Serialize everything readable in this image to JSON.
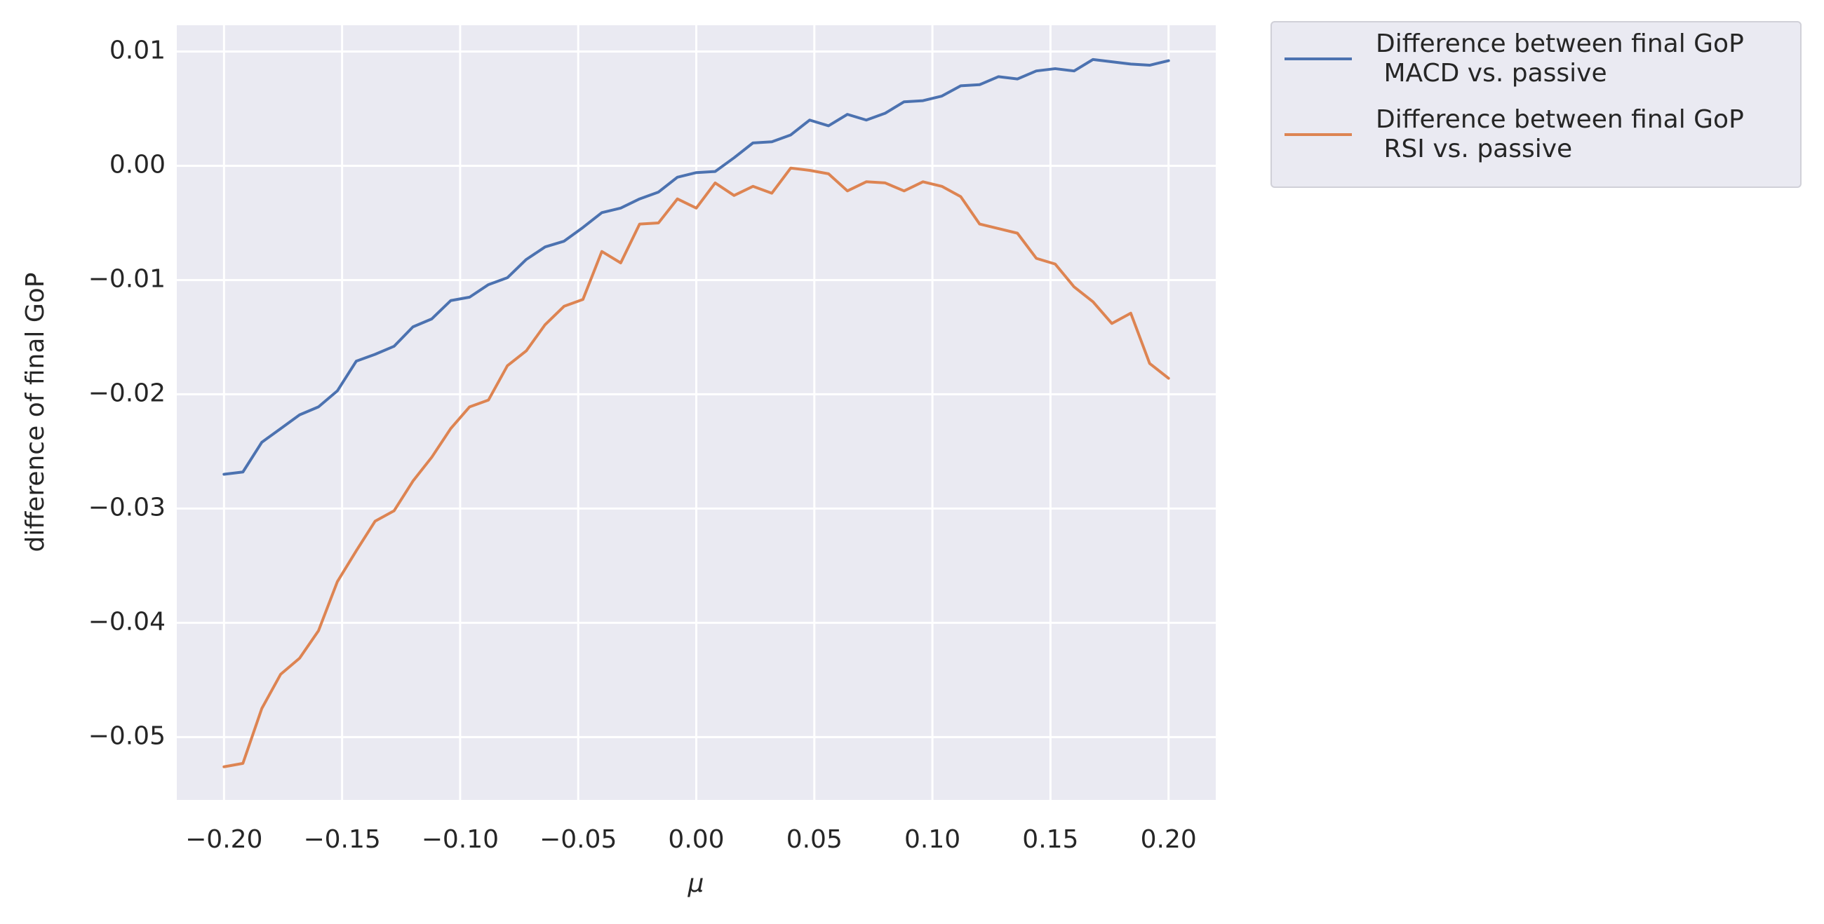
{
  "chart_data": {
    "type": "line",
    "xlabel": "μ",
    "ylabel": "difference of final GoP",
    "x": [
      -0.2,
      -0.192,
      -0.184,
      -0.176,
      -0.168,
      -0.16,
      -0.152,
      -0.144,
      -0.136,
      -0.128,
      -0.12,
      -0.112,
      -0.104,
      -0.096,
      -0.088,
      -0.08,
      -0.072,
      -0.064,
      -0.056,
      -0.048,
      -0.04,
      -0.032,
      -0.024,
      -0.016,
      -0.008,
      0,
      0.008,
      0.016,
      0.024,
      0.032,
      0.04,
      0.048,
      0.056,
      0.064,
      0.072,
      0.08,
      0.088,
      0.096,
      0.104,
      0.112,
      0.12,
      0.128,
      0.136,
      0.144,
      0.152,
      0.16,
      0.168,
      0.176,
      0.184,
      0.192,
      0.2
    ],
    "series": [
      {
        "name": "Difference between final GoP\n MACD vs. passive",
        "color": "#4c72b0",
        "values": [
          -0.027,
          -0.0268,
          -0.0242,
          -0.023,
          -0.0218,
          -0.0211,
          -0.0197,
          -0.0171,
          -0.0165,
          -0.0158,
          -0.0141,
          -0.0134,
          -0.0118,
          -0.0115,
          -0.0104,
          -0.0098,
          -0.0082,
          -0.0071,
          -0.0066,
          -0.0054,
          -0.0041,
          -0.0037,
          -0.0029,
          -0.0023,
          -0.001,
          -0.0006,
          -0.0005,
          0.0007,
          0.002,
          0.0021,
          0.0027,
          0.004,
          0.0035,
          0.0045,
          0.004,
          0.0046,
          0.0056,
          0.0057,
          0.0061,
          0.007,
          0.0071,
          0.0078,
          0.0076,
          0.0083,
          0.0085,
          0.0083,
          0.0093,
          0.0091,
          0.0089,
          0.0088,
          0.0092
        ]
      },
      {
        "name": "Difference between final GoP\n RSI vs. passive",
        "color": "#dd8452",
        "values": [
          -0.0526,
          -0.0523,
          -0.0475,
          -0.0445,
          -0.0431,
          -0.0407,
          -0.0364,
          -0.0337,
          -0.0311,
          -0.0302,
          -0.0276,
          -0.0255,
          -0.023,
          -0.0211,
          -0.0205,
          -0.0175,
          -0.0162,
          -0.0139,
          -0.0123,
          -0.0117,
          -0.0075,
          -0.0085,
          -0.0051,
          -0.005,
          -0.0029,
          -0.0037,
          -0.0015,
          -0.0026,
          -0.0018,
          -0.0024,
          -0.0002,
          -0.0004,
          -0.0007,
          -0.0022,
          -0.0014,
          -0.0015,
          -0.0022,
          -0.0014,
          -0.0018,
          -0.0027,
          -0.0051,
          -0.0055,
          -0.0059,
          -0.0081,
          -0.0086,
          -0.0106,
          -0.0119,
          -0.0138,
          -0.0129,
          -0.0173,
          -0.0186
        ]
      }
    ],
    "xlim": [
      -0.22,
      0.22
    ],
    "xticks": [
      {
        "value": -0.2,
        "label": "−0.20"
      },
      {
        "value": -0.15,
        "label": "−0.15"
      },
      {
        "value": -0.1,
        "label": "−0.10"
      },
      {
        "value": -0.05,
        "label": "−0.05"
      },
      {
        "value": 0,
        "label": "0.00"
      },
      {
        "value": 0.05,
        "label": "0.05"
      },
      {
        "value": 0.1,
        "label": "0.10"
      },
      {
        "value": 0.15,
        "label": "0.15"
      },
      {
        "value": 0.2,
        "label": "0.20"
      }
    ],
    "ylim": [
      -0.0555,
      0.0123
    ],
    "yticks": [
      {
        "value": -0.05,
        "label": "−0.05"
      },
      {
        "value": -0.04,
        "label": "−0.04"
      },
      {
        "value": -0.03,
        "label": "−0.03"
      },
      {
        "value": -0.02,
        "label": "−0.02"
      },
      {
        "value": -0.01,
        "label": "−0.01"
      },
      {
        "value": 0,
        "label": "0.00"
      },
      {
        "value": 0.01,
        "label": "0.01"
      }
    ],
    "grid": true,
    "legend": "outside upper right"
  }
}
